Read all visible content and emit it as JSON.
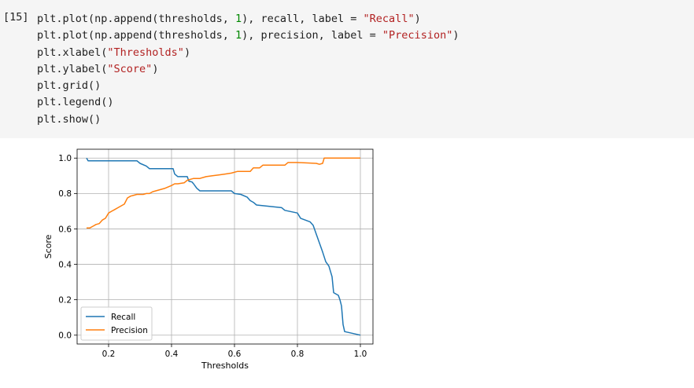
{
  "cell": {
    "prompt": "[15]",
    "lines": [
      {
        "parts": [
          {
            "t": "plt.plot(np.append(thresholds, ",
            "c": ""
          },
          {
            "t": "1",
            "c": "num"
          },
          {
            "t": "), recall, label = ",
            "c": ""
          },
          {
            "t": "\"Recall\"",
            "c": "str"
          },
          {
            "t": ")",
            "c": ""
          }
        ]
      },
      {
        "parts": [
          {
            "t": "plt.plot(np.append(thresholds, ",
            "c": ""
          },
          {
            "t": "1",
            "c": "num"
          },
          {
            "t": "), precision, label = ",
            "c": ""
          },
          {
            "t": "\"Precision\"",
            "c": "str"
          },
          {
            "t": ")",
            "c": ""
          }
        ]
      },
      {
        "parts": [
          {
            "t": "plt.xlabel(",
            "c": ""
          },
          {
            "t": "\"Thresholds\"",
            "c": "str"
          },
          {
            "t": ")",
            "c": ""
          }
        ]
      },
      {
        "parts": [
          {
            "t": "plt.ylabel(",
            "c": ""
          },
          {
            "t": "\"Score\"",
            "c": "str"
          },
          {
            "t": ")",
            "c": ""
          }
        ]
      },
      {
        "parts": [
          {
            "t": "plt.grid()",
            "c": ""
          }
        ]
      },
      {
        "parts": [
          {
            "t": "plt.legend()",
            "c": ""
          }
        ]
      },
      {
        "parts": [
          {
            "t": "plt.show()",
            "c": ""
          }
        ]
      }
    ]
  },
  "chart_data": {
    "type": "line",
    "xlabel": "Thresholds",
    "ylabel": "Score",
    "xlim": [
      0.1,
      1.04
    ],
    "ylim": [
      -0.05,
      1.05
    ],
    "xticks": [
      0.2,
      0.4,
      0.6,
      0.8,
      1.0
    ],
    "xtick_labels": [
      "0.2",
      "0.4",
      "0.6",
      "0.8",
      "1.0"
    ],
    "yticks": [
      0.0,
      0.2,
      0.4,
      0.6,
      0.8,
      1.0
    ],
    "ytick_labels": [
      "0.0",
      "0.2",
      "0.4",
      "0.6",
      "0.8",
      "1.0"
    ],
    "grid": true,
    "legend": "lower-left",
    "series": [
      {
        "name": "Recall",
        "color": "#1f77b4",
        "points": [
          [
            0.13,
            1.0
          ],
          [
            0.135,
            0.985
          ],
          [
            0.29,
            0.985
          ],
          [
            0.3,
            0.97
          ],
          [
            0.32,
            0.955
          ],
          [
            0.33,
            0.94
          ],
          [
            0.405,
            0.94
          ],
          [
            0.41,
            0.91
          ],
          [
            0.42,
            0.895
          ],
          [
            0.45,
            0.895
          ],
          [
            0.455,
            0.87
          ],
          [
            0.465,
            0.865
          ],
          [
            0.47,
            0.855
          ],
          [
            0.48,
            0.83
          ],
          [
            0.49,
            0.815
          ],
          [
            0.59,
            0.815
          ],
          [
            0.6,
            0.8
          ],
          [
            0.62,
            0.795
          ],
          [
            0.64,
            0.78
          ],
          [
            0.65,
            0.76
          ],
          [
            0.66,
            0.75
          ],
          [
            0.67,
            0.735
          ],
          [
            0.75,
            0.72
          ],
          [
            0.76,
            0.705
          ],
          [
            0.8,
            0.69
          ],
          [
            0.81,
            0.66
          ],
          [
            0.84,
            0.64
          ],
          [
            0.85,
            0.62
          ],
          [
            0.86,
            0.57
          ],
          [
            0.87,
            0.52
          ],
          [
            0.88,
            0.47
          ],
          [
            0.89,
            0.415
          ],
          [
            0.9,
            0.39
          ],
          [
            0.91,
            0.33
          ],
          [
            0.915,
            0.24
          ],
          [
            0.93,
            0.225
          ],
          [
            0.935,
            0.2
          ],
          [
            0.94,
            0.165
          ],
          [
            0.945,
            0.06
          ],
          [
            0.95,
            0.02
          ],
          [
            1.0,
            0.0
          ]
        ]
      },
      {
        "name": "Precision",
        "color": "#ff7f0e",
        "points": [
          [
            0.13,
            0.605
          ],
          [
            0.14,
            0.605
          ],
          [
            0.15,
            0.615
          ],
          [
            0.16,
            0.625
          ],
          [
            0.17,
            0.63
          ],
          [
            0.18,
            0.65
          ],
          [
            0.19,
            0.66
          ],
          [
            0.2,
            0.69
          ],
          [
            0.21,
            0.7
          ],
          [
            0.22,
            0.71
          ],
          [
            0.23,
            0.72
          ],
          [
            0.24,
            0.73
          ],
          [
            0.25,
            0.74
          ],
          [
            0.26,
            0.775
          ],
          [
            0.27,
            0.785
          ],
          [
            0.28,
            0.79
          ],
          [
            0.29,
            0.795
          ],
          [
            0.31,
            0.795
          ],
          [
            0.32,
            0.8
          ],
          [
            0.33,
            0.8
          ],
          [
            0.34,
            0.81
          ],
          [
            0.36,
            0.82
          ],
          [
            0.38,
            0.83
          ],
          [
            0.4,
            0.845
          ],
          [
            0.41,
            0.855
          ],
          [
            0.42,
            0.855
          ],
          [
            0.44,
            0.86
          ],
          [
            0.45,
            0.875
          ],
          [
            0.46,
            0.88
          ],
          [
            0.47,
            0.885
          ],
          [
            0.48,
            0.885
          ],
          [
            0.49,
            0.885
          ],
          [
            0.51,
            0.895
          ],
          [
            0.53,
            0.9
          ],
          [
            0.55,
            0.905
          ],
          [
            0.57,
            0.91
          ],
          [
            0.59,
            0.915
          ],
          [
            0.61,
            0.925
          ],
          [
            0.65,
            0.925
          ],
          [
            0.66,
            0.945
          ],
          [
            0.68,
            0.945
          ],
          [
            0.69,
            0.96
          ],
          [
            0.76,
            0.96
          ],
          [
            0.77,
            0.975
          ],
          [
            0.8,
            0.975
          ],
          [
            0.86,
            0.97
          ],
          [
            0.87,
            0.965
          ],
          [
            0.88,
            0.97
          ],
          [
            0.885,
            1.0
          ],
          [
            1.0,
            1.0
          ]
        ]
      }
    ]
  }
}
